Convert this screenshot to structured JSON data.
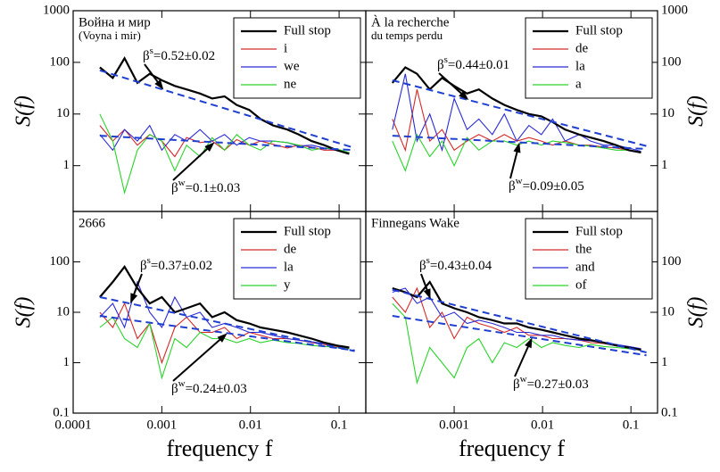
{
  "chart_data": [
    {
      "type": "line",
      "title": [
        "Война и мир",
        "(Voyna i mir)"
      ],
      "ylabel": "S(f)",
      "xscale": "log",
      "yscale": "log",
      "xlim": [
        0.0001,
        0.2
      ],
      "ylim": [
        0.13,
        1000
      ],
      "xticks": [
        0.0001,
        0.001,
        0.01,
        0.1
      ],
      "yticks": [
        1,
        10,
        100,
        1000
      ],
      "show_xticklabels": false,
      "ytick_side": "left",
      "legend": "upper right",
      "x": [
        0.0002,
        0.00028,
        0.00038,
        0.00053,
        0.00073,
        0.001,
        0.0014,
        0.0019,
        0.0027,
        0.0037,
        0.0051,
        0.007,
        0.0097,
        0.013,
        0.018,
        0.026,
        0.035,
        0.049,
        0.068,
        0.094,
        0.13
      ],
      "series": [
        {
          "name": "Full stop",
          "color": "#000000",
          "values": [
            80,
            50,
            120,
            40,
            60,
            45,
            35,
            30,
            25,
            20,
            22,
            15,
            12,
            8,
            6,
            5,
            4,
            3,
            2.5,
            2,
            1.7
          ]
        },
        {
          "name": "i",
          "color": "#d42a2a",
          "values": [
            6,
            3,
            5,
            2.5,
            4,
            3,
            1.5,
            3.5,
            2.8,
            3,
            2,
            3.2,
            2.5,
            3,
            2.6,
            2.2,
            2.5,
            2.3,
            2,
            2,
            1.8
          ]
        },
        {
          "name": "we",
          "color": "#2a2ad4",
          "values": [
            4,
            2,
            5,
            3,
            6,
            2,
            4,
            3,
            5,
            3,
            4,
            2.5,
            3.5,
            3,
            3,
            2.8,
            2.4,
            2.5,
            2.2,
            2,
            1.7
          ]
        },
        {
          "name": "ne",
          "color": "#2ad42a",
          "values": [
            10,
            3,
            0.3,
            2,
            4,
            3,
            0.8,
            2.5,
            1.5,
            3.5,
            2,
            4,
            2.5,
            2,
            3,
            2.8,
            2.5,
            2,
            2.2,
            2.1,
            1.8
          ]
        }
      ],
      "fits": [
        {
          "color": "#1f3fd0",
          "x": [
            0.0002,
            0.15
          ],
          "values": [
            70,
            2.2
          ]
        },
        {
          "color": "#1f3fd0",
          "x": [
            0.0002,
            0.15
          ],
          "values": [
            3.8,
            2.0
          ]
        }
      ],
      "annotations": [
        {
          "symbol": "β",
          "sup": "s",
          "text": "=0.52±0.02"
        },
        {
          "symbol": "β",
          "sup": "w",
          "text": "=0.1±0.03"
        }
      ]
    },
    {
      "type": "line",
      "title": [
        "À la recherche",
        "du temps perdu"
      ],
      "ylabel": "S(f)",
      "xscale": "log",
      "yscale": "log",
      "xlim": [
        0.0001,
        0.2
      ],
      "ylim": [
        0.13,
        1000
      ],
      "xticks": [
        0.001,
        0.01,
        0.1
      ],
      "yticks": [
        1,
        10,
        100,
        1000
      ],
      "show_xticklabels": false,
      "ytick_side": "right",
      "legend": "upper right",
      "x": [
        0.0002,
        0.00028,
        0.00038,
        0.00053,
        0.00073,
        0.001,
        0.0014,
        0.0019,
        0.0027,
        0.0037,
        0.0051,
        0.007,
        0.0097,
        0.013,
        0.018,
        0.026,
        0.035,
        0.049,
        0.068,
        0.094,
        0.13
      ],
      "series": [
        {
          "name": "Full stop",
          "color": "#000000",
          "values": [
            40,
            80,
            60,
            30,
            50,
            35,
            25,
            30,
            20,
            15,
            12,
            10,
            9,
            7,
            5,
            4,
            3.5,
            3,
            2.5,
            2,
            1.8
          ]
        },
        {
          "name": "de",
          "color": "#d42a2a",
          "values": [
            8,
            2,
            30,
            3,
            5,
            2,
            3,
            4,
            3,
            4,
            3,
            3.5,
            3,
            2.5,
            3,
            2.5,
            2.5,
            2.3,
            2.2,
            2,
            1.8
          ]
        },
        {
          "name": "la",
          "color": "#2a2ad4",
          "values": [
            5,
            60,
            3,
            10,
            2,
            20,
            5,
            8,
            4,
            10,
            3,
            6,
            4,
            8,
            3,
            4,
            3,
            2.5,
            2.5,
            2.2,
            1.9
          ]
        },
        {
          "name": "a",
          "color": "#2ad42a",
          "values": [
            3,
            0.8,
            4,
            1.5,
            3,
            1,
            3.5,
            2,
            3,
            3,
            2.5,
            3,
            2.5,
            3,
            2.8,
            2.5,
            2.4,
            2.2,
            2,
            2,
            1.8
          ]
        }
      ],
      "fits": [
        {
          "color": "#1f3fd0",
          "x": [
            0.0002,
            0.15
          ],
          "values": [
            45,
            2.4
          ]
        },
        {
          "color": "#1f3fd0",
          "x": [
            0.0002,
            0.15
          ],
          "values": [
            3.8,
            2.1
          ]
        }
      ],
      "annotations": [
        {
          "symbol": "β",
          "sup": "s",
          "text": "=0.44±0.01"
        },
        {
          "symbol": "β",
          "sup": "w",
          "text": "=0.09±0.05"
        }
      ]
    },
    {
      "type": "line",
      "title": [
        "2666"
      ],
      "ylabel": "S(f)",
      "xlabel": "frequency f",
      "xscale": "log",
      "yscale": "log",
      "xlim": [
        0.0001,
        0.2
      ],
      "ylim": [
        0.1,
        1000
      ],
      "xticks": [
        0.0001,
        0.001,
        0.01,
        0.1
      ],
      "yticks": [
        0.1,
        1,
        10,
        100
      ],
      "show_xticklabels": true,
      "ytick_side": "left",
      "legend": "upper right",
      "x": [
        0.0002,
        0.00028,
        0.00038,
        0.00053,
        0.00073,
        0.001,
        0.0014,
        0.0019,
        0.0027,
        0.0037,
        0.0051,
        0.007,
        0.0097,
        0.013,
        0.018,
        0.026,
        0.035,
        0.049,
        0.068,
        0.094,
        0.13
      ],
      "series": [
        {
          "name": "Full stop",
          "color": "#000000",
          "values": [
            20,
            40,
            80,
            30,
            15,
            20,
            10,
            12,
            15,
            8,
            10,
            7,
            6,
            5,
            4.5,
            4,
            3.5,
            3,
            2.5,
            2.2,
            2
          ]
        },
        {
          "name": "de",
          "color": "#d42a2a",
          "values": [
            10,
            5,
            15,
            3,
            6,
            1,
            5,
            8,
            4,
            4,
            5,
            3,
            4,
            3.5,
            3,
            3,
            2.8,
            2.5,
            2.3,
            2.1,
            1.9
          ]
        },
        {
          "name": "la",
          "color": "#2a2ad4",
          "values": [
            8,
            15,
            5,
            40,
            10,
            5,
            20,
            8,
            10,
            5,
            6,
            5,
            4,
            4,
            3.5,
            3,
            2.8,
            2.6,
            2.4,
            2.2,
            2
          ]
        },
        {
          "name": "y",
          "color": "#2ad42a",
          "values": [
            5,
            8,
            3,
            2,
            6,
            0.5,
            3,
            2,
            4,
            3,
            3,
            2.5,
            3,
            2.5,
            2.8,
            2.5,
            2.4,
            2.2,
            2.1,
            2,
            1.9
          ]
        }
      ],
      "fits": [
        {
          "color": "#1f3fd0",
          "x": [
            0.0002,
            0.15
          ],
          "values": [
            20,
            1.7
          ]
        },
        {
          "color": "#1f3fd0",
          "x": [
            0.0002,
            0.15
          ],
          "values": [
            8.5,
            1.75
          ]
        }
      ],
      "annotations": [
        {
          "symbol": "β",
          "sup": "s",
          "text": "=0.37±0.02"
        },
        {
          "symbol": "β",
          "sup": "w",
          "text": "=0.24±0.03"
        }
      ]
    },
    {
      "type": "line",
      "title": [
        "Finnegans Wake"
      ],
      "ylabel": "S(f)",
      "xlabel": "frequency f",
      "xscale": "log",
      "yscale": "log",
      "xlim": [
        0.0001,
        0.2
      ],
      "ylim": [
        0.1,
        1000
      ],
      "xticks": [
        0.001,
        0.01,
        0.1
      ],
      "yticks": [
        0.1,
        1,
        10,
        100
      ],
      "show_xticklabels": true,
      "ytick_side": "right",
      "legend": "upper right",
      "x": [
        0.0002,
        0.00028,
        0.00038,
        0.00053,
        0.00073,
        0.001,
        0.0014,
        0.0019,
        0.0027,
        0.0037,
        0.0051,
        0.007,
        0.0097,
        0.013,
        0.018,
        0.026,
        0.035,
        0.049,
        0.068,
        0.094,
        0.13
      ],
      "series": [
        {
          "name": "Full stop",
          "color": "#000000",
          "values": [
            30,
            25,
            20,
            40,
            15,
            12,
            10,
            8,
            7,
            6,
            6,
            5,
            4.5,
            4,
            3.5,
            3,
            2.8,
            2.5,
            2.2,
            2,
            1.8
          ]
        },
        {
          "name": "the",
          "color": "#d42a2a",
          "values": [
            20,
            10,
            30,
            5,
            10,
            3,
            8,
            6,
            5,
            4,
            5,
            3.5,
            3.5,
            3,
            3,
            2.8,
            2.5,
            2.4,
            2.2,
            2,
            1.8
          ]
        },
        {
          "name": "and",
          "color": "#2a2ad4",
          "values": [
            25,
            30,
            15,
            20,
            8,
            10,
            6,
            7,
            6,
            5,
            4,
            4,
            3.5,
            3.5,
            3,
            2.8,
            2.7,
            2.5,
            2.3,
            2.1,
            1.9
          ]
        },
        {
          "name": "of",
          "color": "#2ad42a",
          "values": [
            15,
            8,
            0.4,
            2,
            1,
            0.5,
            2,
            3,
            1,
            2.5,
            2,
            3,
            2,
            2.5,
            2.2,
            2,
            2.3,
            2.1,
            2,
            1.9,
            1.8
          ]
        }
      ],
      "fits": [
        {
          "color": "#1f3fd0",
          "x": [
            0.0002,
            0.15
          ],
          "values": [
            28,
            1.6
          ]
        },
        {
          "color": "#1f3fd0",
          "x": [
            0.0002,
            0.15
          ],
          "values": [
            8.5,
            1.4
          ]
        }
      ],
      "annotations": [
        {
          "symbol": "β",
          "sup": "s",
          "text": "=0.43±0.04"
        },
        {
          "symbol": "β",
          "sup": "w",
          "text": "=0.27±0.03"
        }
      ]
    }
  ]
}
